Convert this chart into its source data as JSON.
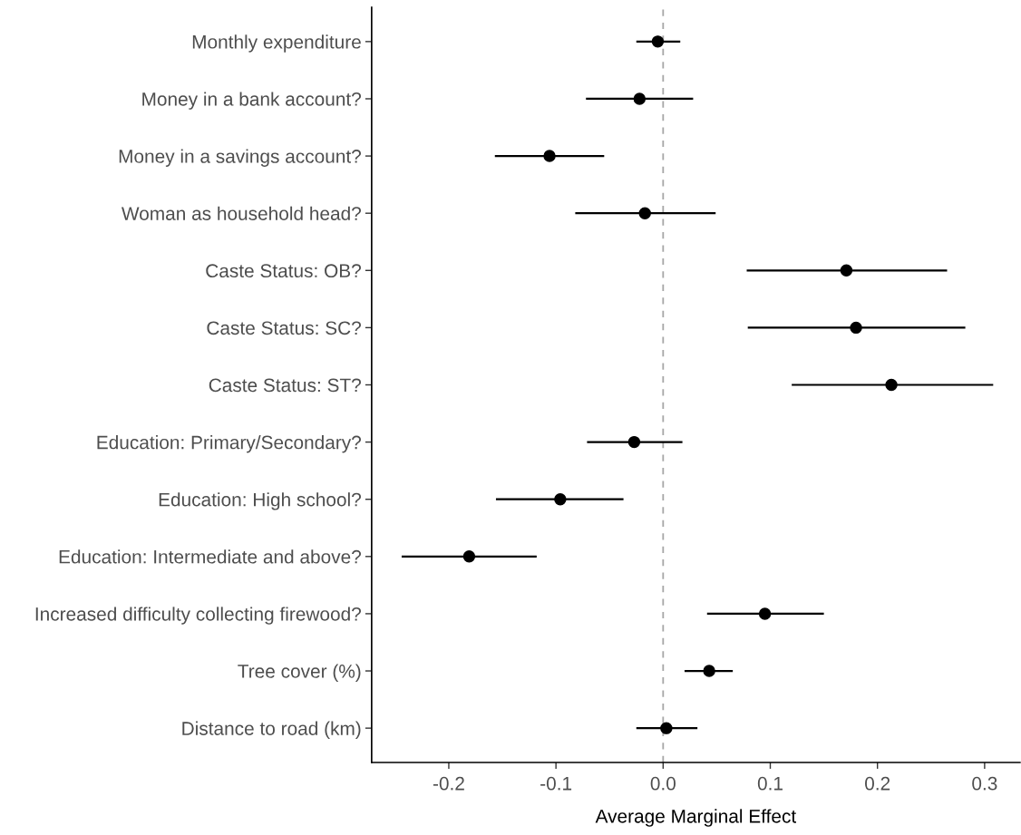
{
  "chart_data": {
    "type": "scatter",
    "orientation": "horizontal",
    "xlabel": "Average Marginal Effect",
    "categories": [
      "Monthly expenditure",
      "Money in a bank account?",
      "Money in a savings account?",
      "Woman as household head?",
      "Caste Status: OB?",
      "Caste Status: SC?",
      "Caste Status: ST?",
      "Education: Primary/Secondary?",
      "Education: High school?",
      "Education: Intermediate and above?",
      "Increased difficulty collecting firewood?",
      "Tree cover (%)",
      "Distance to road (km)"
    ],
    "series": [
      {
        "color": "#000000",
        "values": [
          -0.005,
          -0.022,
          -0.106,
          -0.017,
          0.171,
          0.18,
          0.213,
          -0.027,
          -0.096,
          -0.181,
          0.095,
          0.043,
          0.003
        ],
        "errors": [
          [
            -0.025,
            0.016
          ],
          [
            -0.072,
            0.028
          ],
          [
            -0.157,
            -0.055
          ],
          [
            -0.082,
            0.049
          ],
          [
            0.078,
            0.265
          ],
          [
            0.079,
            0.282
          ],
          [
            0.12,
            0.308
          ],
          [
            -0.071,
            0.018
          ],
          [
            -0.156,
            -0.037
          ],
          [
            -0.244,
            -0.118
          ],
          [
            0.041,
            0.15
          ],
          [
            0.02,
            0.065
          ],
          [
            -0.025,
            0.032
          ]
        ]
      }
    ],
    "xlim": [
      -0.272,
      0.333
    ],
    "xticks": [
      {
        "value": -0.2,
        "label": "-0.2"
      },
      {
        "value": -0.1,
        "label": "-0.1"
      },
      {
        "value": 0.0,
        "label": "0.0"
      },
      {
        "value": 0.1,
        "label": "0.1"
      },
      {
        "value": 0.2,
        "label": "0.2"
      },
      {
        "value": 0.3,
        "label": "0.3"
      }
    ],
    "ref_lines": [
      {
        "axis": "x",
        "value": 0,
        "color": "#a6a6a6",
        "line_style": "dashed"
      }
    ],
    "marker": "circle",
    "grid": false
  }
}
